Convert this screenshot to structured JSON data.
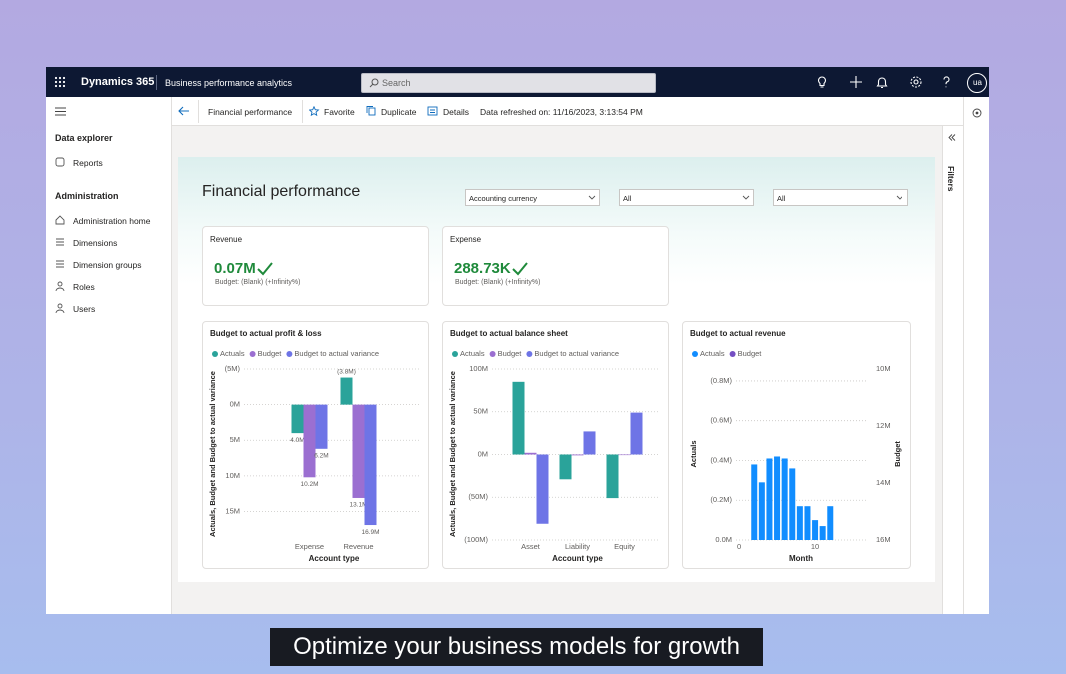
{
  "app": {
    "brand": "Dynamics 365",
    "module": "Business performance analytics",
    "search": "Search",
    "avatar": "ua"
  },
  "nav": {
    "sections": [
      {
        "title": "Data explorer",
        "items": [
          "Reports"
        ]
      },
      {
        "title": "Administration",
        "items": [
          "Administration home",
          "Dimensions",
          "Dimension groups",
          "Roles",
          "Users"
        ]
      }
    ]
  },
  "command_bar": {
    "page": "Financial performance",
    "actions": [
      "Favorite",
      "Duplicate",
      "Details"
    ],
    "refreshed": "Data refreshed on: 11/16/2023, 3:13:54 PM"
  },
  "filters": {
    "label": "Filters"
  },
  "report": {
    "title": "Financial performance",
    "slicers": [
      "Accounting currency",
      "All",
      "All"
    ],
    "kpis": [
      {
        "title": "Revenue",
        "value": "0.07M",
        "budget": "Budget: (Blank) (+Infinity%)"
      },
      {
        "title": "Expense",
        "value": "288.73K",
        "budget": "Budget: (Blank) (+Infinity%)"
      }
    ],
    "charts": [
      {
        "type": "bar",
        "title": "Budget to actual profit & loss",
        "categories": [
          "Expense",
          "Revenue"
        ],
        "series": [
          {
            "name": "Actuals",
            "color": "#2aa39a",
            "values": [
              4.0,
              -3.8
            ],
            "value_labels": [
              "4.0M",
              "(3.8M)"
            ]
          },
          {
            "name": "Budget",
            "color": "#9b6fd1",
            "values": [
              10.2,
              13.1
            ],
            "value_labels": [
              "10.2M",
              "13.1M"
            ]
          },
          {
            "name": "Budget to actual variance",
            "color": "#6e74e6",
            "values": [
              6.2,
              16.9
            ],
            "value_labels": [
              "6.2M",
              "16.9M"
            ]
          }
        ],
        "x_label": "Account type",
        "y_label": "Actuals, Budget and Budget to actual variance",
        "ylim": [
          -5,
          19
        ],
        "y_inverted": true,
        "yticks": [
          {
            "value": -5,
            "label": "(5M)"
          },
          {
            "value": 0,
            "label": "0M"
          },
          {
            "value": 5,
            "label": "5M"
          },
          {
            "value": 10,
            "label": "10M"
          },
          {
            "value": 15,
            "label": "15M"
          }
        ],
        "grid": true
      },
      {
        "type": "bar",
        "title": "Budget to actual balance sheet",
        "categories": [
          "Asset",
          "Liability",
          "Equity"
        ],
        "series": [
          {
            "name": "Actuals",
            "color": "#2aa39a",
            "values": [
              85,
              -29,
              -51
            ]
          },
          {
            "name": "Budget",
            "color": "#9b6fd1",
            "values": [
              2,
              -1,
              0
            ]
          },
          {
            "name": "Budget to actual variance",
            "color": "#6e74e6",
            "values": [
              -81,
              27,
              49
            ]
          }
        ],
        "x_label": "Account type",
        "y_label": "Actuals, Budget and Budget to actual variance",
        "ylim": [
          -100,
          100
        ],
        "y_inverted": false,
        "yticks": [
          {
            "value": 100,
            "label": "100M"
          },
          {
            "value": 50,
            "label": "50M"
          },
          {
            "value": 0,
            "label": "0M"
          },
          {
            "value": -50,
            "label": "(50M)"
          },
          {
            "value": -100,
            "label": "(100M)"
          }
        ],
        "grid": true
      },
      {
        "type": "bar",
        "title": "Budget to actual revenue",
        "x": [
          2,
          3,
          4,
          5,
          6,
          7,
          8,
          9,
          10,
          11,
          12
        ],
        "series": [
          {
            "name": "Actuals",
            "color": "#118dff",
            "values": [
              -0.38,
              -0.29,
              -0.41,
              -0.42,
              -0.41,
              -0.36,
              -0.17,
              -0.17,
              -0.1,
              -0.07,
              -0.17
            ]
          },
          {
            "name": "Budget",
            "color": "#744ec2",
            "axis": "y2",
            "values": [
              null,
              null,
              null,
              null,
              null,
              null,
              null,
              null,
              null,
              null,
              null
            ]
          }
        ],
        "x_label": "Month",
        "y_label": "Actuals",
        "y2_label": "Budget",
        "xlim": [
          -0.4,
          16.7
        ],
        "xticks": [
          0,
          10
        ],
        "ylim": [
          -0.86,
          0
        ],
        "y_inverted": true,
        "yticks": [
          {
            "value": -0.8,
            "label": "(0.8M)"
          },
          {
            "value": -0.6,
            "label": "(0.6M)"
          },
          {
            "value": -0.4,
            "label": "(0.4M)"
          },
          {
            "value": -0.2,
            "label": "(0.2M)"
          },
          {
            "value": 0,
            "label": "0.0M"
          }
        ],
        "y2lim": [
          10,
          16
        ],
        "y2_inverted": true,
        "y2ticks": [
          {
            "value": 10,
            "label": "10M"
          },
          {
            "value": 12,
            "label": "12M"
          },
          {
            "value": 14,
            "label": "14M"
          },
          {
            "value": 16,
            "label": "16M"
          }
        ],
        "grid": true
      }
    ]
  },
  "caption": "Optimize your business models for growth"
}
